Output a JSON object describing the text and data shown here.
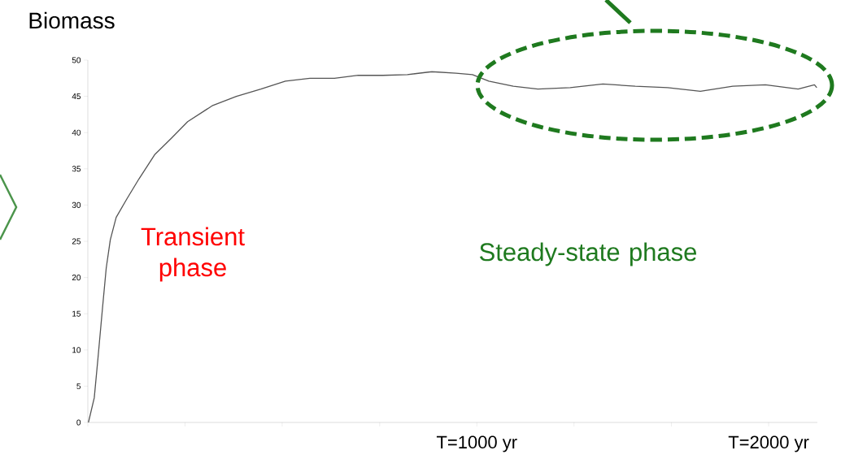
{
  "chart_data": {
    "type": "line",
    "ylabel": "Biomass",
    "annotations": [
      "Transient phase",
      "Steady-state phase"
    ],
    "x": [
      -331,
      -311,
      -298,
      -283,
      -270,
      -256,
      -236,
      -200,
      -158,
      -103,
      -47,
      9,
      93,
      176,
      260,
      344,
      428,
      512,
      594,
      678,
      762,
      846,
      929,
      985,
      1041,
      1125,
      1209,
      1320,
      1432,
      1543,
      1654,
      1766,
      1877,
      1989,
      2101,
      2157,
      2165
    ],
    "series": [
      {
        "color": "#555555",
        "values": [
          0,
          3.4,
          9,
          15.7,
          21.3,
          25.2,
          28.3,
          30.8,
          33.6,
          37,
          39.2,
          41.5,
          43.7,
          45,
          46,
          47.1,
          47.5,
          47.5,
          47.9,
          47.9,
          48,
          48.4,
          48.2,
          48,
          47.1,
          46.4,
          46,
          46.2,
          46.7,
          46.4,
          46.2,
          45.7,
          46.4,
          46.6,
          46,
          46.6,
          46.2
        ]
      }
    ],
    "xlim": [
      -333,
      2167
    ],
    "xticks": [
      {
        "value": -333,
        "label": null
      },
      {
        "value": 0,
        "label": null
      },
      {
        "value": 333,
        "label": null
      },
      {
        "value": 667,
        "label": null
      },
      {
        "value": 1000,
        "label": "T=1000 yr"
      },
      {
        "value": 1333,
        "label": null
      },
      {
        "value": 1667,
        "label": null
      },
      {
        "value": 2000,
        "label": "T=2000 yr"
      }
    ],
    "ylim": [
      0,
      50
    ],
    "yticks": [
      0,
      5,
      10,
      15,
      20,
      25,
      30,
      35,
      40,
      45,
      50
    ],
    "grid": false,
    "marker": "none",
    "line_style": "solid"
  }
}
